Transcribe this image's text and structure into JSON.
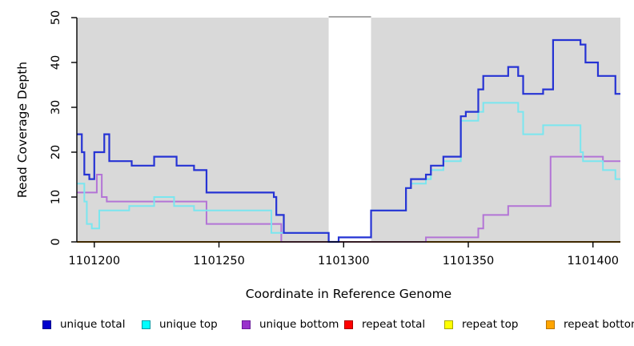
{
  "axes": {
    "x_label": "Coordinate in Reference Genome",
    "y_label": "Read Coverage Depth"
  },
  "chart_data": {
    "type": "line",
    "subtype": "step-after",
    "title": "",
    "xlabel": "Coordinate in Reference Genome",
    "ylabel": "Read Coverage Depth",
    "xlim": [
      1101193,
      1101411
    ],
    "ylim": [
      0,
      50
    ],
    "x_ticks": [
      1101200,
      1101250,
      1101300,
      1101350,
      1101400
    ],
    "y_ticks": [
      0,
      10,
      20,
      30,
      40,
      50
    ],
    "grid": false,
    "legend_position": "bottom",
    "plot_bg": "#D9D9D9",
    "masked_region": {
      "x_start": 1101294,
      "x_end": 1101311,
      "fill": "#FFFFFF",
      "top_line_color": "#8C8C8C"
    },
    "series": [
      {
        "name": "repeat total",
        "color": "#DC143C",
        "width": 1.8,
        "points": [
          [
            1101193,
            0
          ]
        ]
      },
      {
        "name": "repeat top",
        "color": "#FFFF00",
        "width": 1.8,
        "points": [
          [
            1101193,
            0
          ]
        ]
      },
      {
        "name": "repeat bottom",
        "color": "#FFA500",
        "width": 2,
        "points": [
          [
            1101193,
            0
          ]
        ]
      },
      {
        "name": "unique bottom",
        "color": "#B374D6",
        "width": 2,
        "zero_overlap_color": "#D4738F",
        "points": [
          [
            1101193,
            11
          ],
          [
            1101201,
            15
          ],
          [
            1101203,
            10
          ],
          [
            1101205,
            9
          ],
          [
            1101245,
            4
          ],
          [
            1101275,
            0
          ],
          [
            1101333,
            1
          ],
          [
            1101354,
            3
          ],
          [
            1101356,
            6
          ],
          [
            1101366,
            8
          ],
          [
            1101383,
            19
          ],
          [
            1101404,
            18
          ]
        ]
      },
      {
        "name": "unique top",
        "color": "#7AE6EF",
        "width": 2,
        "points": [
          [
            1101193,
            13
          ],
          [
            1101196,
            9
          ],
          [
            1101197,
            4
          ],
          [
            1101199,
            3
          ],
          [
            1101202,
            7
          ],
          [
            1101214,
            8
          ],
          [
            1101224,
            10
          ],
          [
            1101232,
            8
          ],
          [
            1101240,
            7
          ],
          [
            1101271,
            2
          ],
          [
            1101294,
            0
          ],
          [
            1101298,
            1
          ],
          [
            1101311,
            7
          ],
          [
            1101325,
            12
          ],
          [
            1101327,
            13
          ],
          [
            1101333,
            14
          ],
          [
            1101335,
            16
          ],
          [
            1101340,
            18
          ],
          [
            1101347,
            27
          ],
          [
            1101354,
            29
          ],
          [
            1101356,
            31
          ],
          [
            1101370,
            29
          ],
          [
            1101372,
            24
          ],
          [
            1101380,
            26
          ],
          [
            1101395,
            20
          ],
          [
            1101396,
            18
          ],
          [
            1101404,
            16
          ],
          [
            1101409,
            14
          ]
        ]
      },
      {
        "name": "unique total",
        "color": "#2633D4",
        "width": 2.2,
        "points": [
          [
            1101193,
            24
          ],
          [
            1101195,
            20
          ],
          [
            1101196,
            15
          ],
          [
            1101198,
            14
          ],
          [
            1101200,
            20
          ],
          [
            1101204,
            24
          ],
          [
            1101206,
            18
          ],
          [
            1101215,
            17
          ],
          [
            1101224,
            19
          ],
          [
            1101233,
            17
          ],
          [
            1101240,
            16
          ],
          [
            1101245,
            11
          ],
          [
            1101272,
            10
          ],
          [
            1101273,
            6
          ],
          [
            1101276,
            2
          ],
          [
            1101294,
            0
          ],
          [
            1101298,
            1
          ],
          [
            1101311,
            7
          ],
          [
            1101325,
            12
          ],
          [
            1101327,
            14
          ],
          [
            1101333,
            15
          ],
          [
            1101335,
            17
          ],
          [
            1101340,
            19
          ],
          [
            1101347,
            28
          ],
          [
            1101349,
            29
          ],
          [
            1101354,
            34
          ],
          [
            1101356,
            37
          ],
          [
            1101366,
            39
          ],
          [
            1101370,
            37
          ],
          [
            1101372,
            33
          ],
          [
            1101380,
            34
          ],
          [
            1101384,
            45
          ],
          [
            1101395,
            44
          ],
          [
            1101397,
            40
          ],
          [
            1101402,
            37
          ],
          [
            1101409,
            33
          ]
        ]
      }
    ]
  },
  "legend": {
    "items": [
      {
        "label": "unique total",
        "fill": "#0000CD",
        "border": "#00008B"
      },
      {
        "label": "unique top",
        "fill": "#00FFFF",
        "border": "#009AA4"
      },
      {
        "label": "unique bottom",
        "fill": "#9932CC",
        "border": "#6A1B9A"
      },
      {
        "label": "repeat total",
        "fill": "#FF0000",
        "border": "#A80000"
      },
      {
        "label": "repeat top",
        "fill": "#FFFF00",
        "border": "#A8A800"
      },
      {
        "label": "repeat bottom",
        "fill": "#FFA500",
        "border": "#B97400"
      }
    ]
  }
}
